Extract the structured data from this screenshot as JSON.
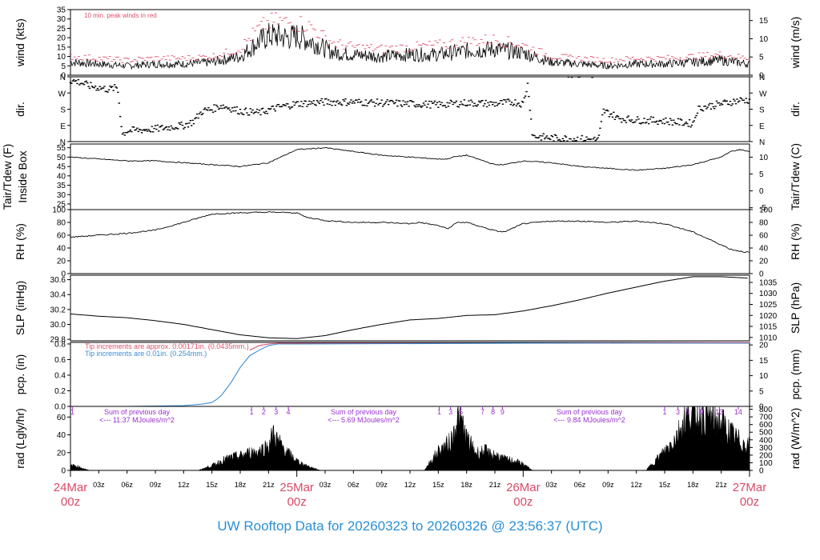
{
  "footer": {
    "prefix": "UW Rooftop Data for",
    "start": "20260323",
    "to": "to",
    "end": "20260326",
    "at": "@",
    "time": "23:56:37",
    "tz": "(UTC)"
  },
  "colors": {
    "peak_red": "#e0506c",
    "pcp_blue": "#3a8ed6",
    "pcp_red": "#e0506c",
    "rad_purple": "#9b30d0",
    "date_red": "#d94a66",
    "title_blue": "#2a8fd6",
    "trace": "#000000"
  },
  "x_axis": {
    "hour_ticks": [
      "03z",
      "06z",
      "09z",
      "12z",
      "15z",
      "18z",
      "21z",
      "03z",
      "06z",
      "09z",
      "12z",
      "15z",
      "18z",
      "21z",
      "03z",
      "06z",
      "09z",
      "12z",
      "15z",
      "18z",
      "21z"
    ],
    "hour_offsets": [
      3,
      6,
      9,
      12,
      15,
      18,
      21,
      27,
      30,
      33,
      36,
      39,
      42,
      45,
      51,
      54,
      57,
      60,
      63,
      66,
      69
    ],
    "dates": [
      {
        "date": "24Mar",
        "hour": "00z",
        "offset": 0
      },
      {
        "date": "25Mar",
        "hour": "00z",
        "offset": 24
      },
      {
        "date": "26Mar",
        "hour": "00z",
        "offset": 48
      },
      {
        "date": "27Mar",
        "hour": "00z",
        "offset": 72
      }
    ],
    "range_hours": [
      0,
      72
    ]
  },
  "chart_data": [
    {
      "type": "line",
      "panel": "wind",
      "ylabel": "wind (kts)",
      "ylabel_right": "wind (m/s)",
      "ylim": [
        0,
        35
      ],
      "yticks": [
        0,
        5,
        10,
        15,
        20,
        25,
        30,
        35
      ],
      "yticks_right": [
        0,
        5,
        10,
        15
      ],
      "annotation": "10 min. peak winds in red",
      "x_hours": [
        0,
        3,
        6,
        9,
        12,
        15,
        18,
        19,
        20,
        21,
        22,
        23,
        24,
        25,
        26,
        27,
        28,
        30,
        33,
        36,
        39,
        42,
        45,
        48,
        51,
        54,
        57,
        60,
        63,
        66,
        69,
        72
      ],
      "series": [
        {
          "values": [
            7,
            6,
            5,
            6,
            6,
            7,
            10,
            14,
            18,
            21,
            21,
            20,
            21,
            19,
            17,
            14,
            12,
            11,
            10,
            11,
            11,
            13,
            14,
            12,
            7,
            6,
            5,
            6,
            6,
            7,
            8,
            6
          ]
        },
        {
          "values": [
            10,
            9,
            8,
            9,
            9,
            10,
            14,
            20,
            25,
            28,
            29,
            28,
            28,
            27,
            24,
            20,
            17,
            15,
            14,
            15,
            16,
            18,
            19,
            16,
            10,
            9,
            8,
            9,
            9,
            10,
            11,
            9
          ]
        }
      ]
    },
    {
      "type": "scatter",
      "panel": "dir",
      "ylabel": "dir.",
      "ylabel_right": "dir.",
      "yticks_labels": [
        "N",
        "E",
        "S",
        "W",
        "N"
      ],
      "ylim": [
        0,
        360
      ],
      "x_hours": [
        0,
        1,
        2,
        3,
        4,
        5,
        5.5,
        6,
        9,
        12,
        12.5,
        13,
        14,
        15,
        16,
        18,
        20,
        22,
        24,
        27,
        30,
        33,
        36,
        39,
        42,
        45,
        46,
        47,
        48,
        48.5,
        49,
        51,
        54,
        56,
        56.5,
        57,
        57.5,
        58,
        60,
        63,
        66,
        66.5,
        67,
        68,
        69,
        70,
        71,
        72
      ],
      "values": [
        340,
        330,
        310,
        300,
        290,
        300,
        40,
        60,
        70,
        90,
        100,
        110,
        170,
        180,
        200,
        170,
        160,
        190,
        210,
        220,
        220,
        215,
        210,
        205,
        215,
        210,
        215,
        220,
        210,
        320,
        30,
        20,
        15,
        10,
        170,
        160,
        150,
        130,
        120,
        115,
        100,
        180,
        190,
        200,
        210,
        220,
        230,
        230
      ]
    },
    {
      "type": "line",
      "panel": "temp",
      "ylabel": "Tair/Tdew (F)",
      "ylabel2": "Inside Box",
      "ylabel_right": "Tair/Tdew (C)",
      "ylim": [
        22,
        57
      ],
      "yticks": [
        25,
        30,
        35,
        40,
        45,
        50,
        55
      ],
      "yticks_right": [
        -5,
        0,
        5,
        10
      ],
      "x_hours": [
        0,
        3,
        6,
        9,
        12,
        15,
        18,
        21,
        24,
        27,
        30,
        33,
        36,
        39,
        40,
        40.5,
        42,
        45,
        46,
        48,
        51,
        54,
        57,
        60,
        63,
        66,
        69,
        70,
        71,
        72
      ],
      "values": [
        50,
        49,
        48,
        48,
        47,
        46,
        45,
        47,
        54,
        55,
        53,
        51,
        50,
        49,
        49,
        50,
        51,
        46,
        46,
        48,
        47,
        45,
        44,
        43,
        44,
        46,
        50,
        53,
        54,
        53
      ]
    },
    {
      "type": "line",
      "panel": "rh",
      "ylabel": "RH (%)",
      "ylabel_right": "RH (%)",
      "ylim": [
        0,
        100
      ],
      "yticks": [
        0,
        20,
        40,
        60,
        80,
        100
      ],
      "x_hours": [
        0,
        3,
        6,
        9,
        12,
        15,
        18,
        21,
        24,
        25,
        27,
        30,
        33,
        36,
        37,
        39,
        40,
        41,
        42,
        45,
        46,
        48,
        51,
        54,
        57,
        60,
        63,
        66,
        69,
        70,
        71,
        72
      ],
      "values": [
        57,
        60,
        63,
        68,
        80,
        93,
        95,
        96,
        95,
        88,
        83,
        80,
        80,
        78,
        80,
        75,
        70,
        80,
        80,
        67,
        65,
        78,
        82,
        82,
        80,
        82,
        78,
        65,
        45,
        38,
        35,
        33
      ]
    },
    {
      "type": "line",
      "panel": "slp",
      "ylabel": "SLP (inHg)",
      "ylabel_right": "SLP (hPa)",
      "ylim": [
        29.78,
        30.66
      ],
      "yticks": [
        29.8,
        30.0,
        30.2,
        30.4,
        30.6
      ],
      "yticks_right": [
        1010,
        1015,
        1020,
        1025,
        1030,
        1035
      ],
      "x_hours": [
        0,
        3,
        6,
        9,
        12,
        15,
        18,
        21,
        24,
        27,
        30,
        33,
        36,
        39,
        42,
        45,
        48,
        51,
        54,
        57,
        60,
        63,
        66,
        69,
        72
      ],
      "values": [
        30.14,
        30.11,
        30.09,
        30.05,
        30.0,
        29.93,
        29.86,
        29.82,
        29.81,
        29.85,
        29.93,
        30.0,
        30.06,
        30.08,
        30.12,
        30.13,
        30.18,
        30.25,
        30.33,
        30.42,
        30.5,
        30.58,
        30.64,
        30.64,
        30.62
      ]
    },
    {
      "type": "line",
      "panel": "pcp",
      "ylabel": "pcp. (in)",
      "ylabel_right": "pcp. (mm)",
      "ylim": [
        0,
        0.82
      ],
      "yticks": [
        0.0,
        0.2,
        0.4,
        0.6,
        0.8
      ],
      "yticks_right": [
        0,
        5,
        10,
        15,
        20
      ],
      "note_red": "Tip increments are approx. 0.00171in. (0.0435mm.)",
      "note_blue": "Tip increments are 0.01in. (0.254mm.)",
      "series": [
        {
          "name": "approx",
          "x_hours": [
            19,
            20,
            21,
            22,
            23,
            24,
            48,
            72
          ],
          "values": [
            0.72,
            0.78,
            0.8,
            0.81,
            0.81,
            0.81,
            0.81,
            0.82
          ]
        },
        {
          "name": "tips",
          "x_hours": [
            0,
            6,
            9,
            12,
            14,
            15,
            15.5,
            16,
            16.5,
            17,
            18,
            19,
            20,
            21,
            22,
            24,
            48,
            72
          ],
          "values": [
            0,
            0,
            0.005,
            0.01,
            0.03,
            0.05,
            0.09,
            0.14,
            0.22,
            0.3,
            0.5,
            0.65,
            0.72,
            0.78,
            0.8,
            0.8,
            0.81,
            0.81
          ]
        }
      ]
    },
    {
      "type": "area",
      "panel": "rad",
      "ylabel": "rad (Lgly/hr)",
      "ylabel_right": "rad (W/m^2)",
      "ylim": [
        0,
        72
      ],
      "yticks": [
        0,
        20,
        40,
        60
      ],
      "yticks_right": [
        0,
        100,
        200,
        300,
        400,
        500,
        600,
        700,
        800
      ],
      "x_hours": [
        0,
        0.5,
        1,
        1.5,
        2,
        13.5,
        14,
        15,
        16,
        17,
        18,
        19,
        20,
        20.5,
        21,
        21.5,
        22,
        23,
        24,
        25,
        26,
        26.5,
        37.5,
        38,
        39,
        40,
        40.5,
        41,
        41.5,
        42,
        43,
        44,
        44.5,
        45,
        46,
        47,
        48,
        48.5,
        49,
        61,
        62,
        63,
        64,
        64.5,
        65,
        66,
        67,
        68,
        69,
        70,
        71,
        72
      ],
      "values": [
        6,
        6,
        4,
        2,
        0,
        0,
        2,
        6,
        12,
        16,
        18,
        22,
        24,
        28,
        30,
        46,
        36,
        22,
        12,
        6,
        2,
        0,
        0,
        8,
        24,
        32,
        40,
        66,
        60,
        40,
        22,
        24,
        20,
        20,
        14,
        12,
        8,
        4,
        0,
        0,
        12,
        24,
        38,
        48,
        62,
        72,
        70,
        66,
        60,
        46,
        36,
        30
      ],
      "day_sums": [
        {
          "label": "Sum of previous day",
          "value": "<--- 11.37 MJoules/m^2"
        },
        {
          "label": "Sum of previous day",
          "value": "<--- 5.69 MJoules/m^2"
        },
        {
          "label": "Sum of previous day",
          "value": "<--- 9.84 MJoules/m^2"
        }
      ],
      "hour_markers": [
        {
          "text": "1",
          "hour": 0.2
        },
        {
          "text": "1",
          "hour": 19.2
        },
        {
          "text": "2",
          "hour": 20.5
        },
        {
          "text": "3",
          "hour": 21.8
        },
        {
          "text": "4",
          "hour": 23.1
        },
        {
          "text": "1",
          "hour": 39.1
        },
        {
          "text": "3",
          "hour": 40.3
        },
        {
          "text": "5",
          "hour": 41.4
        },
        {
          "text": "7",
          "hour": 43.7
        },
        {
          "text": "8",
          "hour": 44.8
        },
        {
          "text": "9",
          "hour": 45.8
        },
        {
          "text": "1",
          "hour": 63.0
        },
        {
          "text": "3",
          "hour": 64.4
        },
        {
          "text": "5",
          "hour": 65.4
        },
        {
          "text": "9",
          "hour": 66.9
        },
        {
          "text": "13",
          "hour": 68.8
        },
        {
          "text": "14",
          "hour": 70.8
        }
      ]
    }
  ]
}
